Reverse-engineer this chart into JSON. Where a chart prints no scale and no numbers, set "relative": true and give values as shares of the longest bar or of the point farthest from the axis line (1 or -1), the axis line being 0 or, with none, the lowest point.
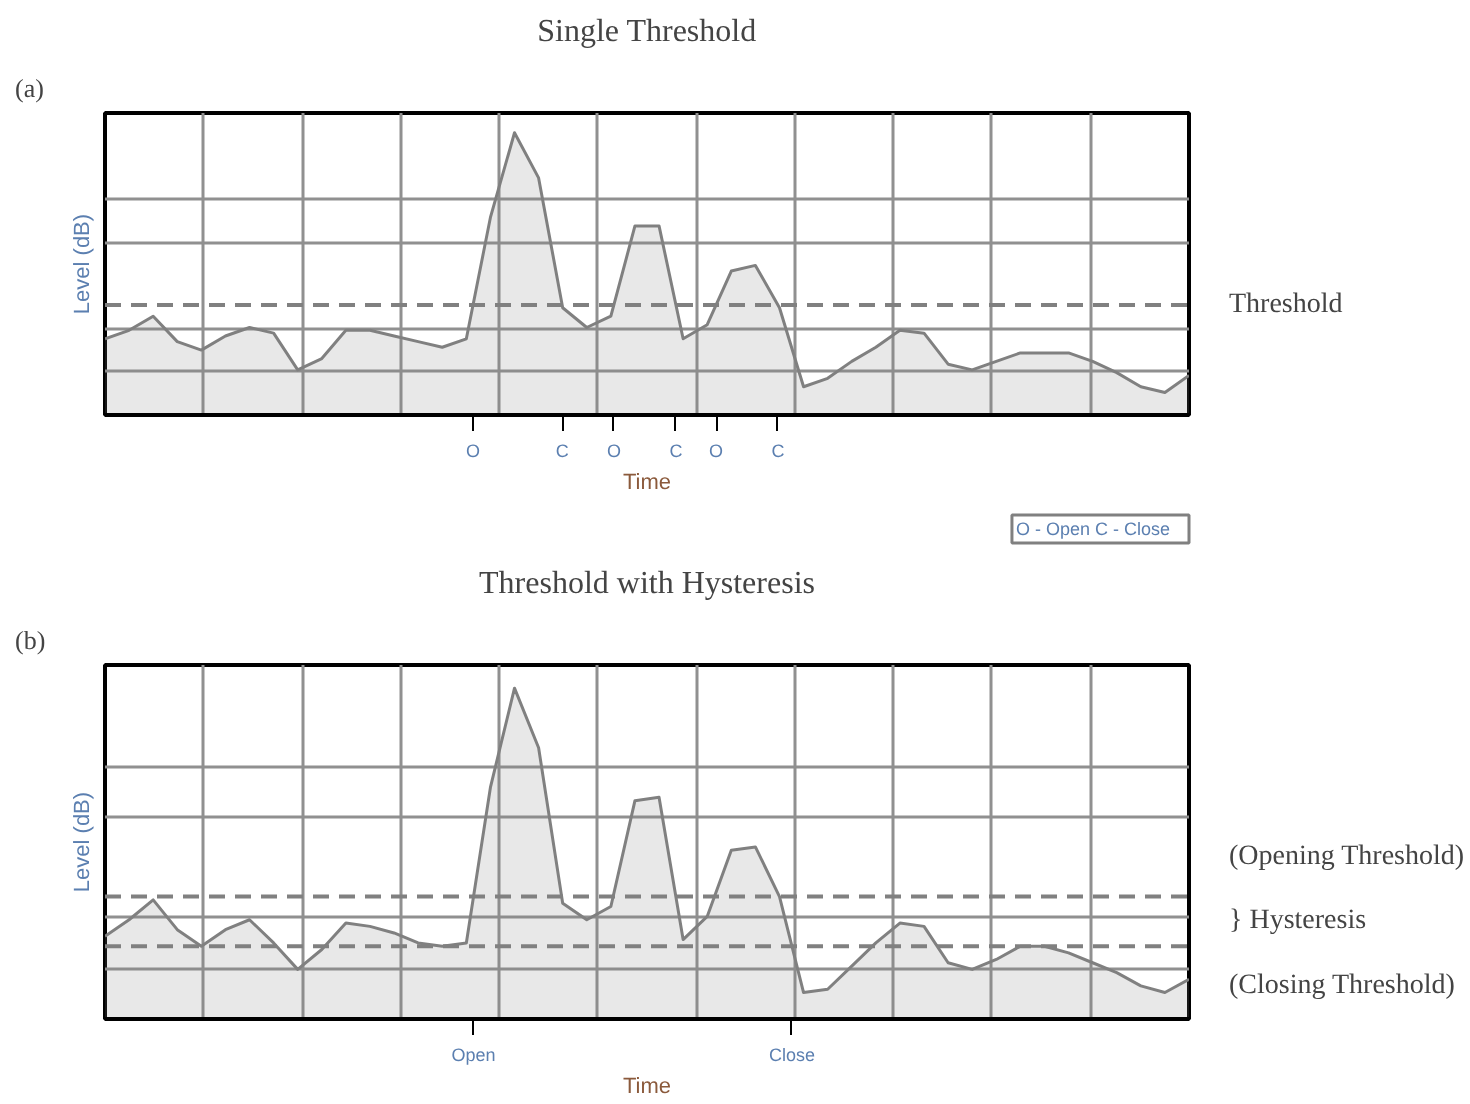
{
  "chart_data": [
    {
      "type": "area",
      "title": "Single Threshold",
      "xlabel": "Time",
      "ylabel": "Level (dB)",
      "relative": true,
      "grid": true,
      "categories": [
        null,
        null,
        null,
        null,
        null,
        null,
        null,
        null,
        null,
        null,
        null,
        null,
        null,
        null,
        null,
        null,
        null,
        null,
        null,
        null,
        null,
        null,
        null,
        null,
        null,
        null,
        null,
        null,
        null,
        null,
        null,
        null,
        null,
        null,
        null,
        null,
        null,
        null,
        null,
        null,
        null,
        null,
        null,
        null,
        null,
        null
      ],
      "series": [
        {
          "color": "#808080",
          "values": [
            0.27,
            0.3,
            0.35,
            0.26,
            0.23,
            0.28,
            0.31,
            0.29,
            0.16,
            0.2,
            0.3,
            0.3,
            0.28,
            0.26,
            0.24,
            0.27,
            0.7,
            1.0,
            0.84,
            0.38,
            0.31,
            0.35,
            0.67,
            0.67,
            0.27,
            0.32,
            0.51,
            0.53,
            0.38,
            0.1,
            0.13,
            0.19,
            0.24,
            0.3,
            0.29,
            0.18,
            0.16,
            0.19,
            0.22,
            0.22,
            0.22,
            0.19,
            0.15,
            0.1,
            0.08,
            0.14
          ]
        }
      ],
      "ref_lines": [
        {
          "axis": "y",
          "value": 0.39,
          "label": "Threshold",
          "line_style": "dashed",
          "color": "#808080"
        }
      ],
      "annotations": [
        "(a)",
        "O",
        "C",
        "O",
        "C",
        "O",
        "C",
        "O - Open    C - Close"
      ]
    },
    {
      "type": "area",
      "title": "Threshold with Hysteresis",
      "xlabel": "Time",
      "ylabel": "Level (dB)",
      "relative": true,
      "grid": true,
      "categories": [
        null,
        null,
        null,
        null,
        null,
        null,
        null,
        null,
        null,
        null,
        null,
        null,
        null,
        null,
        null,
        null,
        null,
        null,
        null,
        null,
        null,
        null,
        null,
        null,
        null,
        null,
        null,
        null,
        null,
        null,
        null,
        null,
        null,
        null,
        null,
        null,
        null,
        null,
        null,
        null,
        null,
        null,
        null,
        null,
        null,
        null
      ],
      "series": [
        {
          "color": "#808080",
          "values": [
            0.25,
            0.3,
            0.36,
            0.27,
            0.22,
            0.27,
            0.3,
            0.23,
            0.15,
            0.21,
            0.29,
            0.28,
            0.26,
            0.23,
            0.22,
            0.23,
            0.7,
            1.0,
            0.82,
            0.35,
            0.3,
            0.34,
            0.66,
            0.67,
            0.24,
            0.31,
            0.51,
            0.52,
            0.37,
            0.08,
            0.09,
            0.16,
            0.23,
            0.29,
            0.28,
            0.17,
            0.15,
            0.18,
            0.22,
            0.22,
            0.2,
            0.17,
            0.14,
            0.1,
            0.08,
            0.12
          ]
        }
      ],
      "ref_lines": [
        {
          "axis": "y",
          "value": 0.37,
          "label": "(Opening Threshold)",
          "line_style": "dashed",
          "color": "#808080"
        },
        {
          "axis": "y",
          "value": 0.22,
          "label": "(Closing Threshold)",
          "line_style": "dashed",
          "color": "#808080"
        }
      ],
      "annotations": [
        "(b)",
        "Open",
        "Close",
        "} Hysteresis"
      ]
    }
  ]
}
